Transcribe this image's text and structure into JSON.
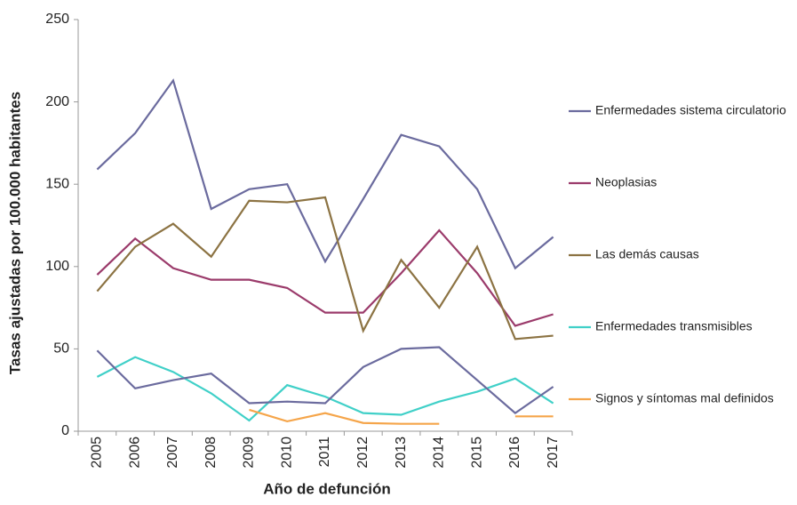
{
  "chart_data": {
    "type": "line",
    "x_label": "Año de defunción",
    "y_label": "Tasas ajustadas por 100.000 habitantes",
    "categories": [
      "2005",
      "2006",
      "2007",
      "2008",
      "2009",
      "2010",
      "2011",
      "2012",
      "2013",
      "2014",
      "2015",
      "2016",
      "2017"
    ],
    "ylim": [
      0,
      250
    ],
    "yticks": [
      0,
      50,
      100,
      150,
      200,
      250
    ],
    "grid": false,
    "legend": "right",
    "series": [
      {
        "name": "Enfermedades sistema circulatorio",
        "color": "#6b6b9e",
        "values": [
          159,
          181,
          213,
          135,
          147,
          150,
          103,
          141,
          180,
          173,
          147,
          99,
          118
        ]
      },
      {
        "name": "Neoplasias",
        "color": "#9b3b6b",
        "values": [
          95,
          117,
          99,
          92,
          92,
          87,
          72,
          72,
          96,
          122,
          96,
          64,
          71
        ]
      },
      {
        "name": "Las demás causas",
        "color": "#8c7343",
        "values": [
          85,
          112,
          126,
          106,
          140,
          139,
          142,
          61,
          104,
          75,
          112,
          56,
          58
        ]
      },
      {
        "name": "Enfermedades transmisibles",
        "color": "#40d0c8",
        "values": [
          33,
          45,
          36,
          23,
          6.5,
          28,
          21,
          11,
          10,
          18,
          24,
          32,
          17
        ]
      },
      {
        "name": "Signos y síntomas mal definidos",
        "color": "#f5a54a",
        "values": [
          null,
          null,
          null,
          null,
          13,
          6,
          11,
          5,
          4.5,
          4.5,
          null,
          9,
          9
        ]
      },
      {
        "color": "#6b6b9e",
        "values": [
          49,
          26,
          31,
          35,
          17,
          18,
          17,
          39,
          50,
          51,
          31,
          11,
          27
        ]
      }
    ]
  }
}
